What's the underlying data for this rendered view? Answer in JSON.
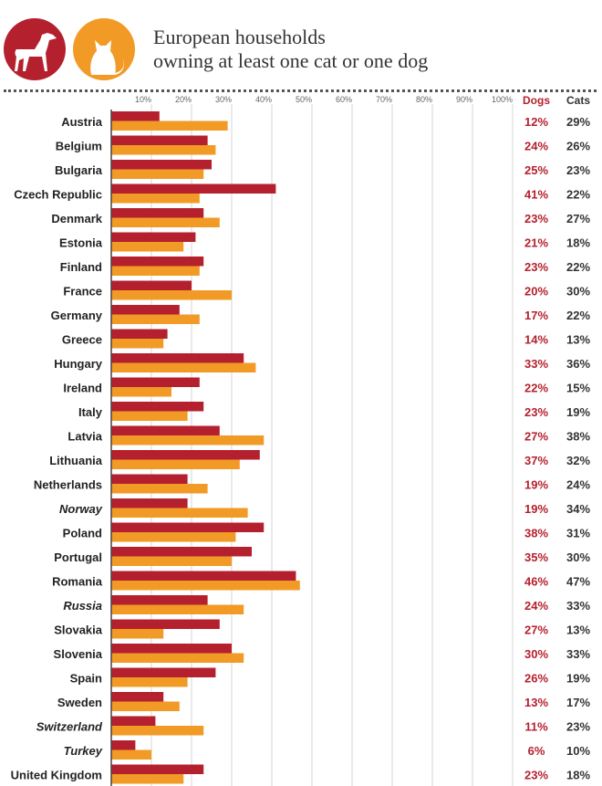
{
  "header": {
    "title_line1": "European households",
    "title_line2": "owning at least one cat or one dog",
    "dog_icon": "dog-icon",
    "cat_icon": "cat-icon"
  },
  "colors": {
    "dogs": "#b5202e",
    "cats": "#f29a26",
    "dog_circle": "#b5202e",
    "cat_circle": "#f29a26",
    "grid": "#d6d6d6",
    "axis": "#444444",
    "label": "#222222"
  },
  "chart_data": {
    "type": "bar",
    "orientation": "horizontal",
    "title": "European households owning at least one cat or one dog",
    "x_ticks": [
      "10%",
      "20%",
      "30%",
      "40%",
      "50%",
      "60%",
      "70%",
      "80%",
      "90%",
      "100%"
    ],
    "xlim": [
      0,
      100
    ],
    "grid": true,
    "value_columns": [
      "Dogs",
      "Cats"
    ],
    "categories": [
      "Austria",
      "Belgium",
      "Bulgaria",
      "Czech Republic",
      "Denmark",
      "Estonia",
      "Finland",
      "France",
      "Germany",
      "Greece",
      "Hungary",
      "Ireland",
      "Italy",
      "Latvia",
      "Lithuania",
      "Netherlands",
      "Norway",
      "Poland",
      "Portugal",
      "Romania",
      "Russia",
      "Slovakia",
      "Slovenia",
      "Spain",
      "Sweden",
      "Switzerland",
      "Turkey",
      "United Kingdom"
    ],
    "italic_categories": [
      "Norway",
      "Russia",
      "Switzerland",
      "Turkey"
    ],
    "series": [
      {
        "name": "Dogs",
        "values": [
          12,
          24,
          25,
          41,
          23,
          21,
          23,
          20,
          17,
          14,
          33,
          22,
          23,
          27,
          37,
          19,
          19,
          38,
          35,
          46,
          24,
          27,
          30,
          26,
          13,
          11,
          6,
          23
        ]
      },
      {
        "name": "Cats",
        "values": [
          29,
          26,
          23,
          22,
          27,
          18,
          22,
          30,
          22,
          13,
          36,
          15,
          19,
          38,
          32,
          24,
          34,
          31,
          30,
          47,
          33,
          13,
          33,
          19,
          17,
          23,
          10,
          18
        ]
      }
    ]
  }
}
